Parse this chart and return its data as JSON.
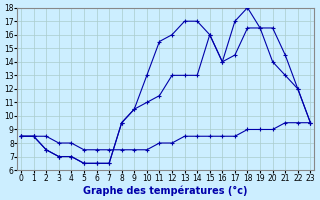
{
  "title": "Graphe des températures (°c)",
  "bg_color": "#cceeff",
  "grid_color": "#aacccc",
  "line_color": "#0000aa",
  "xlim": [
    0,
    23
  ],
  "ylim": [
    6,
    18
  ],
  "xticks": [
    0,
    1,
    2,
    3,
    4,
    5,
    6,
    7,
    8,
    9,
    10,
    11,
    12,
    13,
    14,
    15,
    16,
    17,
    18,
    19,
    20,
    21,
    22,
    23
  ],
  "yticks": [
    6,
    7,
    8,
    9,
    10,
    11,
    12,
    13,
    14,
    15,
    16,
    17,
    18
  ],
  "line1_x": [
    0,
    1,
    2,
    3,
    4,
    5,
    6,
    7,
    8,
    9,
    10,
    11,
    12,
    13,
    14,
    15,
    16,
    17,
    18,
    19,
    20,
    21,
    22,
    23
  ],
  "line1_y": [
    8.5,
    8.5,
    8.5,
    8.0,
    8.0,
    7.5,
    7.5,
    7.5,
    7.5,
    7.5,
    7.5,
    8.0,
    8.0,
    8.5,
    8.5,
    8.5,
    8.5,
    8.5,
    9.0,
    9.0,
    9.0,
    9.5,
    9.5,
    9.5
  ],
  "line2_x": [
    0,
    1,
    2,
    3,
    4,
    5,
    6,
    7,
    8,
    9,
    10,
    11,
    12,
    13,
    14,
    15,
    16,
    17,
    18,
    19,
    20,
    21,
    22,
    23
  ],
  "line2_y": [
    8.5,
    8.5,
    7.5,
    7.0,
    7.0,
    6.5,
    6.5,
    6.5,
    9.5,
    10.5,
    11.0,
    11.5,
    13.0,
    13.0,
    13.0,
    16.0,
    14.0,
    14.5,
    16.5,
    16.5,
    16.5,
    14.5,
    12.0,
    9.5
  ],
  "line3_x": [
    0,
    1,
    2,
    3,
    4,
    5,
    6,
    7,
    8,
    9,
    10,
    11,
    12,
    13,
    14,
    15,
    16,
    17,
    18,
    19,
    20,
    21,
    22,
    23
  ],
  "line3_y": [
    8.5,
    8.5,
    7.5,
    7.0,
    7.0,
    6.5,
    6.5,
    6.5,
    9.5,
    10.5,
    13.0,
    15.5,
    16.0,
    17.0,
    17.0,
    16.0,
    14.0,
    17.0,
    18.0,
    16.5,
    14.0,
    13.0,
    12.0,
    9.5
  ],
  "tick_fontsize": 5.5,
  "xlabel_fontsize": 7,
  "marker": "+"
}
